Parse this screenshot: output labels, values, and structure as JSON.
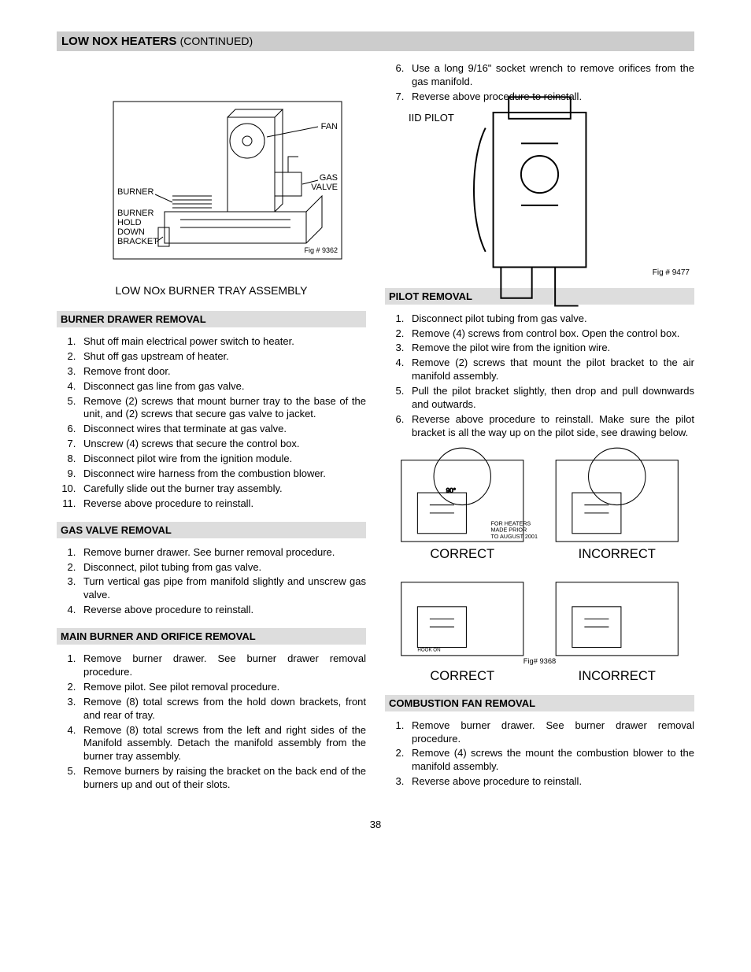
{
  "header": {
    "title": "LOW NOX HEATERS",
    "cont": "(CONTINUED)"
  },
  "page_number": "38",
  "left": {
    "fig1": {
      "labels": {
        "fan": "FAN",
        "gas_valve": "GAS\nVALVE",
        "burner": "BURNER",
        "bracket": "BURNER\nHOLD\nDOWN\nBRACKET"
      },
      "fig_no": "Fig # 9362",
      "caption": "LOW NOx BURNER TRAY ASSEMBLY"
    },
    "burner_removal": {
      "title": "BURNER DRAWER REMOVAL",
      "items": [
        "Shut off main electrical power switch to heater.",
        "Shut off gas upstream of heater.",
        "Remove front door.",
        "Disconnect gas line from gas valve.",
        "Remove (2) screws that mount burner tray to the base of the unit, and (2) screws that secure gas valve to jacket.",
        "Disconnect wires that terminate at gas valve.",
        "Unscrew (4) screws that secure the control box.",
        "Disconnect pilot wire from the ignition module.",
        "Disconnect wire harness from the combustion blower.",
        "Carefully slide out the burner tray assembly.",
        "Reverse above procedure to reinstall."
      ]
    },
    "gas_valve": {
      "title": "GAS VALVE REMOVAL",
      "items": [
        "Remove burner drawer.  See burner removal procedure.",
        "Disconnect, pilot tubing from gas valve.",
        "Turn vertical gas pipe from manifold slightly and unscrew gas valve.",
        "Reverse above procedure to reinstall."
      ]
    },
    "main_burner": {
      "title": "MAIN BURNER AND ORIFICE REMOVAL",
      "items": [
        "Remove burner drawer.  See burner drawer removal procedure.",
        "Remove pilot.  See pilot removal procedure.",
        "Remove (8) total screws from the hold down brackets, front and rear of tray.",
        "Remove (8) total screws from the left and right sides of the Manifold assembly.  Detach the manifold assembly from the burner tray assembly.",
        "Remove burners by raising the bracket on the back end of the burners up and out of their slots."
      ]
    }
  },
  "right": {
    "cont_list": {
      "start": 6,
      "items": [
        "Use a long 9/16\" socket wrench to remove orifices from the gas manifold.",
        "Reverse above procedure to reinstall."
      ]
    },
    "iid_label": "IID PILOT",
    "pilot_fig_no": "Fig # 9477",
    "pilot_removal": {
      "title": "PILOT REMOVAL",
      "items": [
        "Disconnect pilot tubing from gas valve.",
        "Remove (4) screws from control box.  Open the control box.",
        "Remove the pilot wire from the ignition wire.",
        "Remove (2) screws that mount the pilot bracket to the air manifold assembly.",
        "Pull the pilot bracket slightly, then drop and pull downwards and outwards.",
        "Reverse above procedure to reinstall.  Make sure the pilot bracket is all the way up on the pilot side, see drawing below."
      ]
    },
    "correct_fig": {
      "correct": "CORRECT",
      "incorrect": "INCORRECT",
      "note": "FOR HEATERS\nMADE PRIOR\nTO AUGUST 2001",
      "fig_no": "Fig# 9368",
      "hook": "HOOK ON"
    },
    "combustion": {
      "title": "COMBUSTION FAN REMOVAL",
      "items": [
        "Remove burner drawer.  See burner drawer removal procedure.",
        "Remove (4) screws the mount the combustion blower to the manifold assembly.",
        "Reverse above procedure to reinstall."
      ]
    }
  }
}
